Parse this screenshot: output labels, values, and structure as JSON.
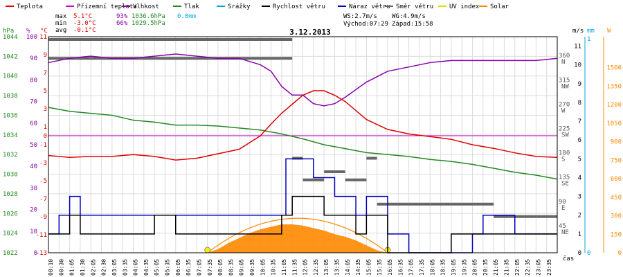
{
  "chart_data": {
    "type": "line",
    "title": "3.12.2013",
    "legend": [
      {
        "name": "Teplota",
        "color": "#dd0000"
      },
      {
        "name": "Přízemní teplota",
        "color": "#cc00cc"
      },
      {
        "name": "Vlhkost",
        "color": "#8800aa"
      },
      {
        "name": "Tlak",
        "color": "#228822"
      },
      {
        "name": "Srážky",
        "color": "#00aadd"
      },
      {
        "name": "Rychlost větru",
        "color": "#000000"
      },
      {
        "name": "Náraz větru",
        "color": "#0000bb"
      },
      {
        "name": "Směr větru",
        "color": "#666666"
      },
      {
        "name": "UV index",
        "color": "#dddd00"
      },
      {
        "name": "Solar",
        "color": "#ff8800"
      }
    ],
    "stats": {
      "max": {
        "label": "max",
        "temp": "5.1°C",
        "hum": "93%",
        "press": "1036.6hPa",
        "rain": "0.0mm"
      },
      "min": {
        "label": "min",
        "temp": "-3.0°C",
        "hum": "66%",
        "press": "1029.5hPa"
      },
      "avg": {
        "label": "avg",
        "temp": "-0.1°C"
      }
    },
    "wind_info": {
      "ws": "WS:2.7m/s",
      "wg": "WG:4.9m/s",
      "sunrise": "Východ:07:29",
      "sunset": "Západ:15:58"
    },
    "axes": {
      "hpa_unit": "hPa",
      "pct_unit": "%",
      "temp_unit": "°C",
      "hpa_ticks": [
        "1044",
        "1042",
        "1040",
        "1038",
        "1036",
        "1034",
        "1032",
        "1030",
        "1028",
        "1026",
        "1024",
        "1022"
      ],
      "pct_ticks": [
        "100",
        "90",
        "80",
        "70",
        "60",
        "50",
        "40",
        "30",
        "20",
        "10",
        "0"
      ],
      "temp_ticks": [
        "11",
        "9",
        "7",
        "5",
        "3",
        "1",
        "0",
        "-1",
        "-3",
        "-5",
        "-7",
        "-9",
        "-11",
        "-13"
      ],
      "dir_ticks": [
        "360 N",
        "315 NW",
        "270 W",
        "225 SW",
        "180 S",
        "135 SE",
        "90 E",
        "45 NE"
      ],
      "ms_unit": "m/s",
      "ms_ticks": [
        "11",
        "10",
        "9",
        "8",
        "7",
        "6",
        "5",
        "4",
        "3",
        "2",
        "1",
        "0"
      ],
      "mm_unit": "mm",
      "mm_ticks": [
        "1",
        "0"
      ],
      "w_unit": "W",
      "w_ticks": [
        "1500",
        "1350",
        "1200",
        "1050",
        "900",
        "750",
        "600",
        "450",
        "300",
        "150",
        "0"
      ],
      "x_label": "čas",
      "times": [
        "00:10",
        "00:30",
        "01:05",
        "01:30",
        "02:05",
        "02:30",
        "03:05",
        "03:35",
        "04:05",
        "04:35",
        "05:05",
        "05:35",
        "06:05",
        "06:35",
        "07:05",
        "07:35",
        "08:05",
        "08:35",
        "09:05",
        "09:35",
        "10:05",
        "10:35",
        "11:05",
        "11:35",
        "12:05",
        "12:35",
        "13:05",
        "13:35",
        "14:05",
        "14:35",
        "15:05",
        "15:35",
        "16:05",
        "16:35",
        "17:05",
        "17:35",
        "18:05",
        "18:35",
        "19:05",
        "19:35",
        "20:05",
        "20:35",
        "21:05",
        "21:35",
        "22:05",
        "22:35",
        "23:05",
        "23:35"
      ]
    },
    "x_range_hours": [
      0,
      24
    ],
    "series": [
      {
        "name": "Teplota",
        "unit": "°C",
        "x": [
          0,
          1,
          2,
          3,
          4,
          5,
          6,
          7,
          8,
          9,
          10,
          10.5,
          11,
          11.5,
          12,
          12.5,
          13,
          13.5,
          14,
          15,
          16,
          17,
          18,
          19,
          20,
          21,
          22,
          23,
          24
        ],
        "y": [
          -2.2,
          -2.4,
          -2.3,
          -2.3,
          -2.1,
          -2.3,
          -2.7,
          -2.5,
          -2.0,
          -1.5,
          0.0,
          1.3,
          2.5,
          3.5,
          4.5,
          5.0,
          5.0,
          4.5,
          3.8,
          1.8,
          0.7,
          0.2,
          -0.1,
          -0.4,
          -1.0,
          -1.4,
          -1.9,
          -2.3,
          -2.4
        ]
      },
      {
        "name": "Vlhkost",
        "unit": "%",
        "x": [
          0,
          1,
          2,
          3,
          4,
          5,
          6,
          7,
          8,
          9,
          10,
          10.5,
          11,
          11.5,
          12,
          12.5,
          13,
          13.5,
          14,
          15,
          16,
          17,
          18,
          19,
          20,
          21,
          22,
          23,
          24
        ],
        "y": [
          88,
          90,
          91,
          90,
          90,
          91,
          92,
          91,
          90,
          90,
          87,
          84,
          77,
          73,
          73,
          69,
          68,
          69,
          72,
          79,
          84,
          86,
          88,
          89,
          89,
          89,
          89,
          89,
          90
        ]
      },
      {
        "name": "Tlak",
        "unit": "hPa",
        "x": [
          0,
          1,
          2,
          3,
          4,
          5,
          6,
          7,
          8,
          9,
          10,
          11,
          12,
          13,
          14,
          15,
          16,
          17,
          18,
          19,
          20,
          21,
          22,
          23,
          24
        ],
        "y": [
          1036.8,
          1036.4,
          1036.2,
          1036.0,
          1035.5,
          1035.3,
          1035.0,
          1035.0,
          1034.9,
          1034.7,
          1034.5,
          1034.1,
          1033.6,
          1033.0,
          1032.6,
          1032.2,
          1032.0,
          1031.8,
          1031.5,
          1031.3,
          1031.0,
          1030.6,
          1030.2,
          1029.9,
          1029.5
        ]
      },
      {
        "name": "Rychlost větru",
        "unit": "m/s",
        "x": [
          0,
          0.5,
          1,
          1.5,
          2,
          3,
          4,
          5,
          6,
          7,
          8,
          9,
          10,
          11,
          11.5,
          12,
          12.5,
          13,
          13.5,
          14,
          14.5,
          15,
          15.5,
          16,
          16.5,
          17,
          18,
          19,
          20,
          21,
          22,
          23,
          24
        ],
        "y": [
          1,
          1,
          2,
          1,
          1,
          1,
          1,
          2,
          1,
          1,
          1,
          1,
          1,
          2,
          3,
          3,
          3,
          2,
          2,
          2,
          1,
          2,
          2,
          0,
          0,
          0,
          0,
          1,
          1,
          1,
          1,
          1,
          1
        ]
      },
      {
        "name": "Náraz větru",
        "unit": "m/s",
        "x": [
          0,
          0.5,
          1,
          1.5,
          2,
          3,
          4,
          5,
          6,
          7,
          8,
          9,
          10,
          11,
          11.2,
          11.5,
          12,
          12.5,
          13,
          13.5,
          14,
          14.5,
          15,
          15.5,
          16,
          16.5,
          17,
          18,
          19,
          20,
          20.5,
          21,
          22,
          23,
          24
        ],
        "y": [
          1,
          2,
          3,
          2,
          2,
          2,
          2,
          2,
          2,
          2,
          2,
          2,
          2,
          2,
          5,
          5,
          5,
          4,
          4,
          3,
          3,
          2,
          3,
          3,
          1,
          1,
          0,
          0,
          0,
          1,
          2,
          2,
          1,
          1,
          1
        ]
      },
      {
        "name": "Směr větru",
        "unit": "deg",
        "x": [
          0,
          11,
          11.5,
          12,
          13,
          14,
          15,
          15.5,
          16,
          17,
          18,
          19,
          20,
          21,
          22,
          23,
          24
        ],
        "y": [
          360,
          360,
          175,
          135,
          150,
          135,
          175,
          90,
          90,
          90,
          90,
          90,
          90,
          67,
          67,
          67,
          67
        ]
      },
      {
        "name": "Solar",
        "unit": "W",
        "x": [
          7.5,
          8,
          8.5,
          9,
          9.5,
          10,
          10.5,
          11,
          11.5,
          12,
          12.5,
          13,
          13.5,
          14,
          14.5,
          15,
          15.5,
          16
        ],
        "y": [
          0,
          30,
          80,
          120,
          160,
          190,
          210,
          230,
          230,
          220,
          200,
          180,
          150,
          130,
          100,
          60,
          20,
          0
        ]
      }
    ]
  }
}
